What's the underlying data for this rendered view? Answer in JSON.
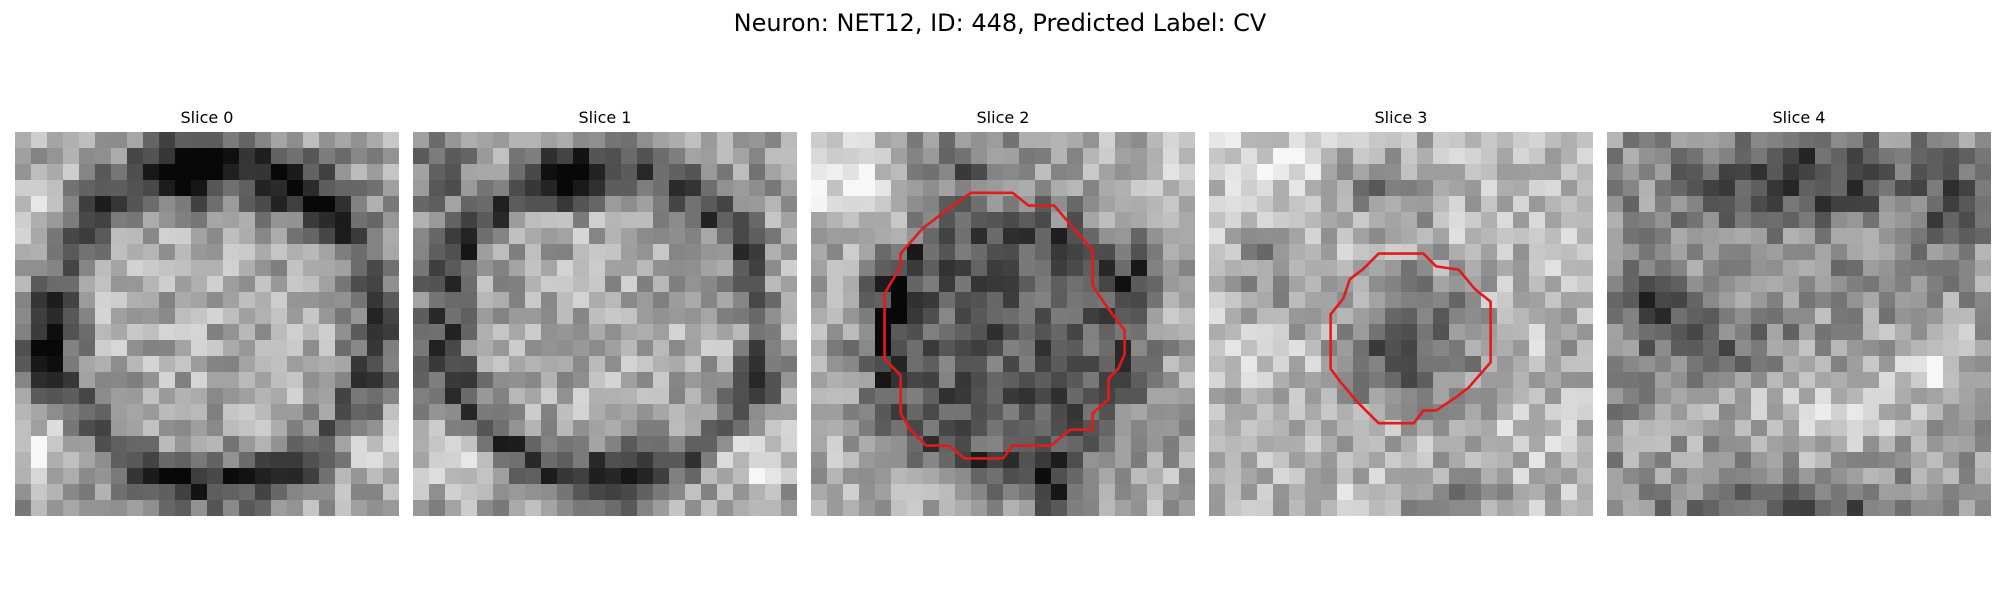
{
  "figure": {
    "title": "Neuron: NET12, ID: 448, Predicted Label: CV"
  },
  "panels": [
    {
      "title": "Slice 0",
      "has_contour": false
    },
    {
      "title": "Slice 1",
      "has_contour": false
    },
    {
      "title": "Slice 2",
      "has_contour": true
    },
    {
      "title": "Slice 3",
      "has_contour": true
    },
    {
      "title": "Slice 4",
      "has_contour": false
    }
  ],
  "colors": {
    "contour": "#e31a1c",
    "background": "#ffffff"
  }
}
